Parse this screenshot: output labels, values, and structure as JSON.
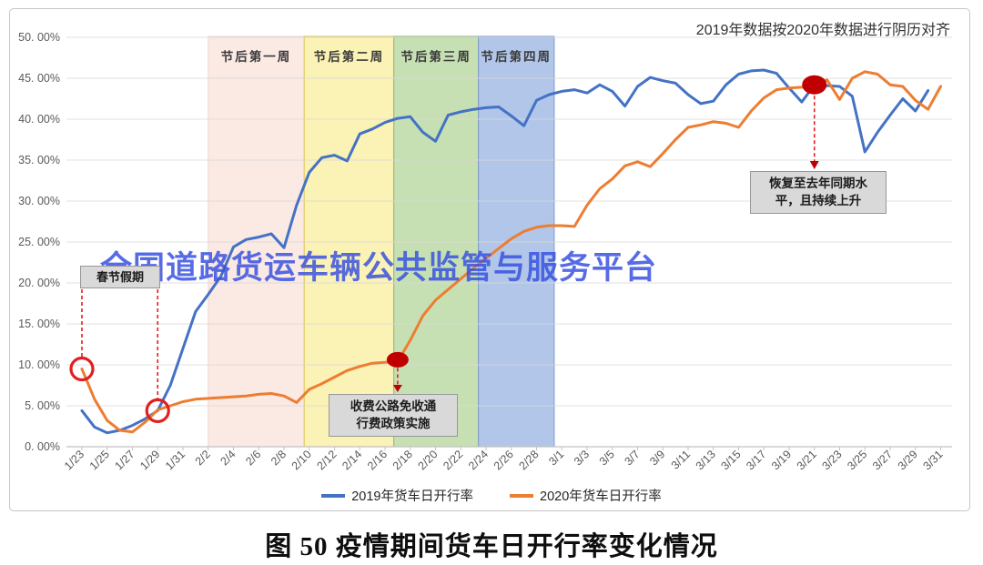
{
  "frame_note": "2019年数据按2020年数据进行阴历对齐",
  "watermark": "全国道路货运车辆公共监管与服务平台",
  "caption": "图 50 疫情期间货车日开行率变化情况",
  "colors": {
    "series_2019": "#4472C4",
    "series_2020": "#ED7D31",
    "marker_red": "#C00000",
    "annotation_red": "#E0201F",
    "watermark_blue": "#3A53E0",
    "annotation_box_bg": "#D9D9D9",
    "grid": "#D9D9D9",
    "axis": "#C2C2C2",
    "tick_text": "#595959",
    "band_text": "#3A3A3A"
  },
  "chart_data": {
    "type": "line",
    "title": "",
    "xlabel": "",
    "ylabel": "",
    "ylim": [
      0,
      50
    ],
    "y_grid_step": 5,
    "grid": true,
    "legend_position": "bottom",
    "y_tick_labels": [
      "0. 00%",
      "5. 00%",
      "10. 00%",
      "15. 00%",
      "20. 00%",
      "25. 00%",
      "30. 00%",
      "35. 00%",
      "40. 00%",
      "45. 00%",
      "50. 00%"
    ],
    "x_tick_labels": [
      "1/23",
      "1/25",
      "1/27",
      "1/29",
      "1/31",
      "2/2",
      "2/4",
      "2/6",
      "2/8",
      "2/10",
      "2/12",
      "2/14",
      "2/16",
      "2/18",
      "2/20",
      "2/22",
      "2/24",
      "2/26",
      "2/28",
      "3/1",
      "3/3",
      "3/5",
      "3/7",
      "3/9",
      "3/11",
      "3/13",
      "3/15",
      "3/17",
      "3/19",
      "3/21",
      "3/23",
      "3/25",
      "3/27",
      "3/29",
      "3/31"
    ],
    "x": [
      "1/23",
      "1/24",
      "1/25",
      "1/26",
      "1/27",
      "1/28",
      "1/29",
      "1/30",
      "1/31",
      "2/1",
      "2/2",
      "2/3",
      "2/4",
      "2/5",
      "2/6",
      "2/7",
      "2/8",
      "2/9",
      "2/10",
      "2/11",
      "2/12",
      "2/13",
      "2/14",
      "2/15",
      "2/16",
      "2/17",
      "2/18",
      "2/19",
      "2/20",
      "2/21",
      "2/22",
      "2/23",
      "2/24",
      "2/25",
      "2/26",
      "2/27",
      "2/28",
      "2/29",
      "3/1",
      "3/2",
      "3/3",
      "3/4",
      "3/5",
      "3/6",
      "3/7",
      "3/8",
      "3/9",
      "3/10",
      "3/11",
      "3/12",
      "3/13",
      "3/14",
      "3/15",
      "3/16",
      "3/17",
      "3/18",
      "3/19",
      "3/20",
      "3/21",
      "3/22",
      "3/23",
      "3/24",
      "3/25",
      "3/26",
      "3/27",
      "3/28",
      "3/29",
      "3/30",
      "3/31"
    ],
    "series": [
      {
        "name": "2019年货车日开行率",
        "color": "#4472C4",
        "values": [
          4.4,
          2.4,
          1.7,
          2.0,
          2.6,
          3.4,
          4.4,
          7.5,
          12.0,
          16.5,
          18.6,
          20.8,
          24.4,
          25.3,
          25.6,
          26.0,
          24.3,
          29.5,
          33.5,
          35.3,
          35.6,
          34.9,
          38.2,
          38.8,
          39.6,
          40.1,
          40.3,
          38.4,
          37.3,
          40.5,
          40.9,
          41.2,
          41.4,
          41.5,
          40.4,
          39.2,
          42.3,
          43.0,
          43.4,
          43.6,
          43.2,
          44.2,
          43.4,
          41.6,
          44.0,
          45.1,
          44.7,
          44.4,
          43.0,
          41.9,
          42.2,
          44.2,
          45.5,
          45.9,
          46.0,
          45.6,
          43.8,
          42.1,
          44.2,
          44.1,
          44.0,
          42.8,
          36.0,
          38.4,
          40.5,
          42.5,
          41.0,
          43.5,
          null
        ]
      },
      {
        "name": "2020年货车日开行率",
        "color": "#ED7D31",
        "values": [
          9.5,
          5.8,
          3.2,
          2.0,
          1.8,
          3.0,
          4.5,
          5.0,
          5.5,
          5.8,
          5.9,
          6.0,
          6.1,
          6.2,
          6.4,
          6.5,
          6.2,
          5.4,
          7.0,
          7.7,
          8.5,
          9.3,
          9.8,
          10.2,
          10.3,
          10.4,
          13.0,
          16.0,
          17.9,
          19.2,
          20.5,
          21.8,
          23.0,
          24.2,
          25.4,
          26.3,
          26.8,
          27.0,
          27.0,
          26.9,
          29.5,
          31.5,
          32.7,
          34.3,
          34.8,
          34.2,
          35.8,
          37.5,
          39.0,
          39.3,
          39.7,
          39.5,
          39.0,
          41.0,
          42.6,
          43.6,
          43.8,
          43.9,
          44.2,
          44.8,
          42.4,
          45.0,
          45.8,
          45.5,
          44.2,
          44.0,
          42.3,
          41.2,
          44.0
        ]
      }
    ],
    "bands": [
      {
        "label": "节后第一周",
        "start_day": 10,
        "end_day": 17.6,
        "fill": "#FBE9E4",
        "border": "#F2D8D2"
      },
      {
        "label": "节后第二周",
        "start_day": 17.6,
        "end_day": 24.7,
        "fill": "#FBF2B5",
        "border": "#D9C45C"
      },
      {
        "label": "节后第三周",
        "start_day": 24.7,
        "end_day": 31.4,
        "fill": "#C6E0B3",
        "border": "#92B579"
      },
      {
        "label": "节后第四周",
        "start_day": 31.4,
        "end_day": 37.4,
        "fill": "#B1C6E9",
        "border": "#7E9CD1"
      }
    ],
    "annotations": {
      "spring_festival": {
        "label": "春节假期",
        "circled_points": [
          {
            "date": "1/23",
            "value": 9.5
          },
          {
            "date": "1/29",
            "value": 4.4
          }
        ]
      },
      "toll_free_policy": {
        "lines": [
          "收费公路免收通",
          "行费政策实施"
        ],
        "point": {
          "date": "2/17",
          "value": 10.4
        }
      },
      "recovery": {
        "lines": [
          "恢复至去年同期水",
          "平，且持续上升"
        ],
        "point": {
          "date": "3/21",
          "value": 44.2
        }
      }
    }
  }
}
